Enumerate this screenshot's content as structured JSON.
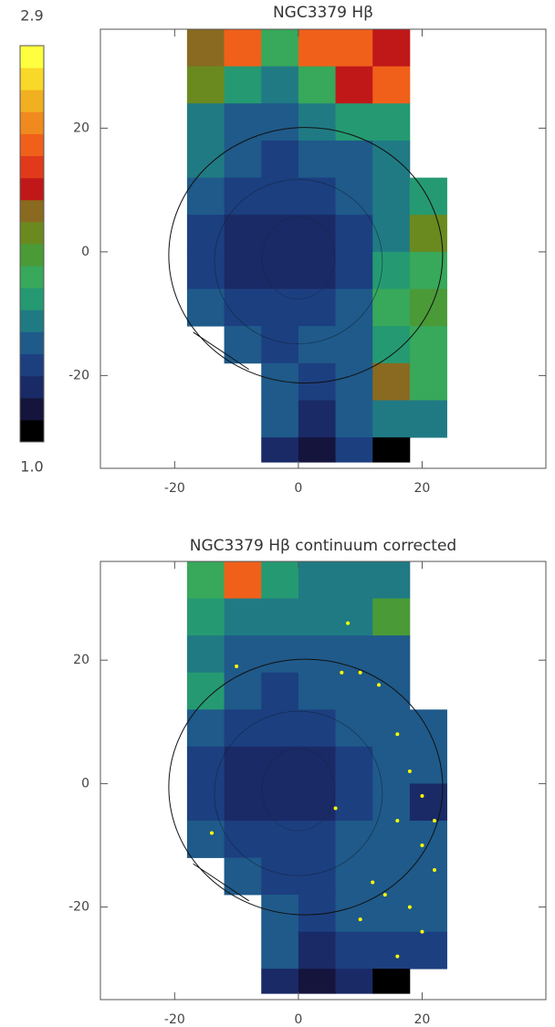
{
  "chart_data": [
    {
      "type": "heatmap",
      "title": "NGC3379 Hβ",
      "x_edges": [
        -18,
        -12,
        -6,
        0,
        6,
        12,
        18,
        24
      ],
      "y_edges": [
        36,
        30,
        24,
        18,
        12,
        6,
        0,
        -6,
        -12,
        -18,
        -24,
        -30,
        -34
      ],
      "z": [
        [
          2.1,
          2.4,
          1.8,
          2.4,
          2.4,
          2.2,
          null
        ],
        [
          2.0,
          1.7,
          1.6,
          1.8,
          2.2,
          2.5,
          null
        ],
        [
          1.6,
          1.5,
          1.4,
          1.6,
          1.7,
          1.7,
          null
        ],
        [
          1.6,
          1.4,
          1.3,
          1.4,
          1.5,
          1.6,
          null
        ],
        [
          1.4,
          1.3,
          1.3,
          1.3,
          1.4,
          1.6,
          1.7
        ],
        [
          1.3,
          1.2,
          1.2,
          1.2,
          1.3,
          1.6,
          2.0
        ],
        [
          1.3,
          1.2,
          1.2,
          1.2,
          1.3,
          1.7,
          1.8
        ],
        [
          1.5,
          1.3,
          1.3,
          1.3,
          1.4,
          1.8,
          1.9
        ],
        [
          null,
          1.4,
          1.3,
          1.4,
          1.5,
          1.7,
          1.8
        ],
        [
          null,
          null,
          1.5,
          1.3,
          1.5,
          2.1,
          1.8
        ],
        [
          null,
          null,
          1.4,
          1.2,
          1.4,
          1.6,
          1.6
        ],
        [
          null,
          null,
          1.2,
          1.1,
          1.3,
          1.0,
          null
        ]
      ],
      "xlim": [
        -32,
        40
      ],
      "ylim": [
        -35,
        36
      ],
      "xticks": [
        -20,
        0,
        20
      ],
      "yticks": [
        -20,
        0,
        20
      ],
      "colorbar_ticks": [
        {
          "value": 1.0,
          "label": "1.0"
        },
        2.9
      ],
      "colormap": [
        "#000000",
        "#14143c",
        "#1a2a66",
        "#1c3f80",
        "#1f5a8a",
        "#207a84",
        "#259a72",
        "#38a85a",
        "#4a9a38",
        "#6a8a20",
        "#8a6a20",
        "#c01818",
        "#e03a1a",
        "#f0601a",
        "#f08a1e",
        "#f0b020",
        "#f8d828",
        "#ffff40"
      ]
    },
    {
      "type": "heatmap",
      "title": "NGC3379 Hβ continuum corrected",
      "x_edges": [
        -18,
        -12,
        -6,
        0,
        6,
        12,
        18,
        24
      ],
      "y_edges": [
        36,
        30,
        24,
        18,
        12,
        6,
        0,
        -6,
        -12,
        -18,
        -24,
        -30,
        -34
      ],
      "z": [
        [
          1.8,
          2.4,
          1.7,
          1.6,
          1.6,
          1.6,
          null
        ],
        [
          1.7,
          1.6,
          1.6,
          1.6,
          1.6,
          1.9,
          null
        ],
        [
          1.6,
          1.5,
          1.4,
          1.4,
          1.4,
          1.4,
          null
        ],
        [
          1.7,
          1.4,
          1.3,
          1.4,
          1.4,
          1.5,
          null
        ],
        [
          1.4,
          1.3,
          1.3,
          1.3,
          1.4,
          1.5,
          1.5
        ],
        [
          1.3,
          1.2,
          1.2,
          1.2,
          1.3,
          1.5,
          1.4
        ],
        [
          1.3,
          1.2,
          1.2,
          1.2,
          1.3,
          1.5,
          1.2
        ],
        [
          1.5,
          1.3,
          1.3,
          1.3,
          1.4,
          1.5,
          1.4
        ],
        [
          null,
          1.4,
          1.3,
          1.3,
          1.4,
          1.5,
          1.5
        ],
        [
          null,
          null,
          1.5,
          1.3,
          1.4,
          1.4,
          1.4
        ],
        [
          null,
          null,
          1.4,
          1.2,
          1.3,
          1.3,
          1.3
        ],
        [
          null,
          null,
          1.2,
          1.1,
          1.2,
          1.0,
          null
        ]
      ],
      "points": {
        "color": "#ffff00",
        "x": [
          8,
          10,
          13,
          7,
          16,
          18,
          20,
          16,
          20,
          22,
          14,
          18,
          10,
          12,
          20,
          -10,
          -14,
          6,
          16,
          22
        ],
        "y": [
          26,
          18,
          16,
          18,
          8,
          2,
          -2,
          -6,
          -10,
          -14,
          -18,
          -20,
          -22,
          -16,
          -24,
          19,
          -8,
          -4,
          -28,
          -6
        ]
      },
      "xlim": [
        -32,
        40
      ],
      "ylim": [
        -35,
        36
      ],
      "xticks": [
        -20,
        0,
        20
      ],
      "yticks": [
        -20,
        0,
        20
      ]
    }
  ]
}
